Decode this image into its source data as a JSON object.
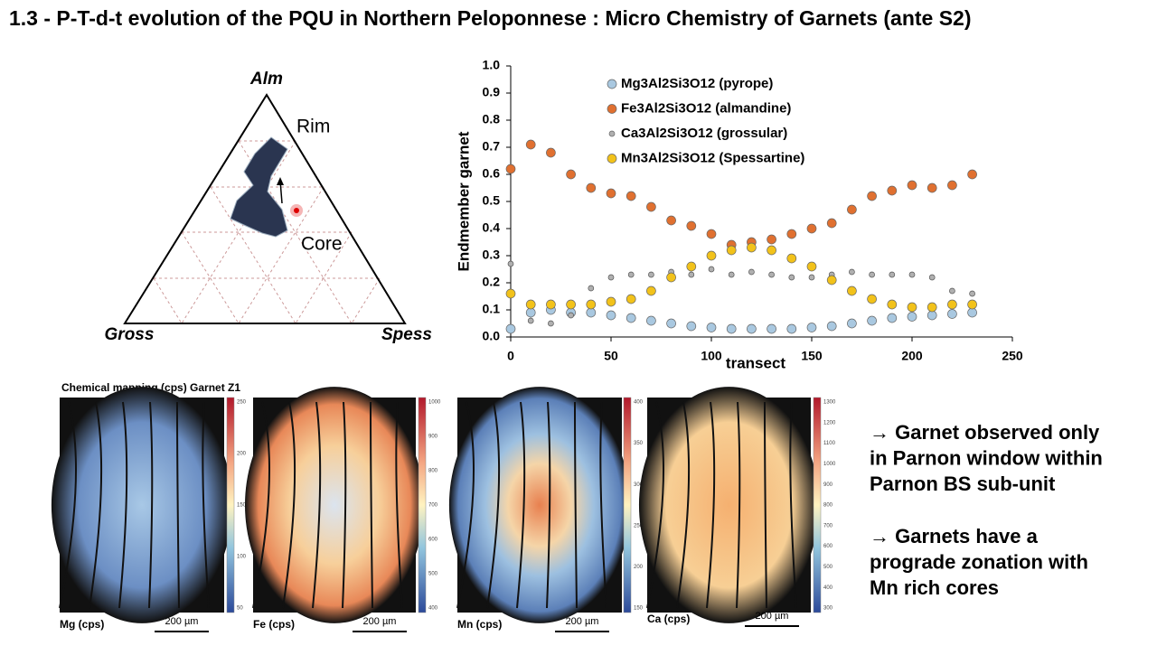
{
  "title": "1.3 - P-T-d-t evolution of the PQU in Northern Peloponnese : Micro Chemistry of Garnets (ante S2)",
  "ternary": {
    "apex_top": "Alm",
    "apex_left": "Gross",
    "apex_right": "Spess",
    "rim": "Rim",
    "core": "Core"
  },
  "chart_data": {
    "type": "scatter",
    "ylabel": "Endmember garnet",
    "xlabel": "transect",
    "x": [
      0,
      10,
      20,
      30,
      40,
      50,
      60,
      70,
      80,
      90,
      100,
      110,
      120,
      130,
      140,
      150,
      160,
      170,
      180,
      190,
      200,
      210,
      220,
      230
    ],
    "series": [
      {
        "name": "Mg3Al2Si3O12 (pyrope)",
        "color": "#a9c8e0",
        "values": [
          0.03,
          0.09,
          0.1,
          0.09,
          0.09,
          0.08,
          0.07,
          0.06,
          0.05,
          0.04,
          0.035,
          0.03,
          0.03,
          0.03,
          0.03,
          0.035,
          0.04,
          0.05,
          0.06,
          0.07,
          0.075,
          0.08,
          0.085,
          0.09
        ]
      },
      {
        "name": "Fe3Al2Si3O12 (almandine)",
        "color": "#e07030",
        "values": [
          0.62,
          0.71,
          0.68,
          0.6,
          0.55,
          0.53,
          0.52,
          0.48,
          0.43,
          0.41,
          0.38,
          0.34,
          0.35,
          0.36,
          0.38,
          0.4,
          0.42,
          0.47,
          0.52,
          0.54,
          0.56,
          0.55,
          0.56,
          0.6
        ]
      },
      {
        "name": "Ca3Al2Si3O12 (grossular)",
        "color": "#b0b0b0",
        "values": [
          0.27,
          0.06,
          0.05,
          0.08,
          0.18,
          0.22,
          0.23,
          0.23,
          0.24,
          0.23,
          0.25,
          0.23,
          0.24,
          0.23,
          0.22,
          0.22,
          0.23,
          0.24,
          0.23,
          0.23,
          0.23,
          0.22,
          0.17,
          0.16
        ]
      },
      {
        "name": "Mn3Al2Si3O12 (Spessartine)",
        "color": "#f2c21a",
        "values": [
          0.16,
          0.12,
          0.12,
          0.12,
          0.12,
          0.13,
          0.14,
          0.17,
          0.22,
          0.26,
          0.3,
          0.32,
          0.33,
          0.32,
          0.29,
          0.26,
          0.21,
          0.17,
          0.14,
          0.12,
          0.11,
          0.11,
          0.12,
          0.12
        ]
      }
    ],
    "xlim": [
      0,
      250
    ],
    "xticks": [
      0,
      50,
      100,
      150,
      200,
      250
    ],
    "ylim": [
      0,
      1
    ],
    "yticks": [
      {
        "value": 0,
        "label": "0.0"
      },
      0.1,
      0.2,
      0.3,
      0.4,
      0.5,
      0.6,
      0.7,
      0.8,
      0.9,
      {
        "value": 1,
        "label": "1.0"
      }
    ]
  },
  "maps": {
    "heading": "Chemical mapping (cps) Garnet Z1",
    "scale": "200 µm",
    "panels": [
      {
        "label": "Mg (cps)",
        "ticks": [
          250,
          200,
          150,
          100,
          50
        ]
      },
      {
        "label": "Fe (cps)",
        "ticks": [
          1000,
          900,
          800,
          700,
          600,
          500,
          400
        ]
      },
      {
        "label": "Mn (cps)",
        "ticks": [
          400,
          350,
          300,
          250,
          200,
          150
        ]
      },
      {
        "label": "Ca (cps)",
        "ticks": [
          1300,
          1200,
          1100,
          1000,
          900,
          800,
          700,
          600,
          500,
          400,
          300
        ]
      }
    ]
  },
  "bullets": [
    [
      "→ Garnet observed only",
      "in Parnon window within",
      "Parnon BS sub-unit"
    ],
    [
      "→ Garnets have a",
      "prograde zonation with",
      "Mn rich cores"
    ]
  ]
}
